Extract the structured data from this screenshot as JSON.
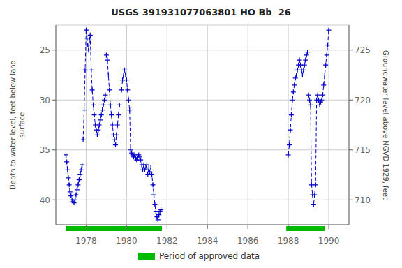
{
  "chart_data": {
    "type": "line",
    "title": "USGS 391931077063801 HO Bb  26",
    "y_label": "Depth to water level, feet below land\nsurface",
    "y2_label": "Groundwater level above NGVD 1929, feet",
    "xlim": [
      1976.5,
      1991.0
    ],
    "xticks": [
      1978,
      1980,
      1982,
      1984,
      1986,
      1988,
      1990
    ],
    "ylim": [
      42.5,
      22.5
    ],
    "yticks": [
      25,
      30,
      35,
      40
    ],
    "y2lim": [
      707.5,
      727.5
    ],
    "y2ticks": [
      710,
      715,
      720,
      725
    ],
    "grid": true,
    "legend": "bottom",
    "color": "#0000CC",
    "marker": "+",
    "line_style": "dashed",
    "series": [
      {
        "x": [
          1977.0,
          1977.04,
          1977.08,
          1977.12,
          1977.16,
          1977.2,
          1977.25,
          1977.3,
          1977.35,
          1977.4,
          1977.45,
          1977.5,
          1977.55,
          1977.6,
          1977.65,
          1977.7,
          1977.75,
          1977.8
        ],
        "values": [
          35.5,
          36.2,
          37.0,
          37.8,
          38.5,
          39.2,
          39.6,
          40.0,
          40.2,
          40.3,
          40.0,
          39.5,
          39.0,
          38.5,
          38.0,
          37.5,
          37.0,
          36.5
        ]
      },
      {
        "x": [
          1977.85,
          1977.9,
          1977.95,
          1978.0,
          1978.04,
          1978.08,
          1978.12,
          1978.16,
          1978.2,
          1978.25,
          1978.3,
          1978.35,
          1978.4,
          1978.45,
          1978.5,
          1978.55,
          1978.6,
          1978.65,
          1978.7,
          1978.75,
          1978.8,
          1978.85,
          1978.9,
          1978.95
        ],
        "values": [
          34.0,
          31.0,
          27.0,
          23.0,
          23.8,
          24.5,
          25.0,
          24.0,
          23.5,
          27.0,
          29.0,
          30.5,
          31.5,
          32.5,
          33.0,
          33.5,
          33.0,
          32.5,
          32.0,
          31.5,
          31.0,
          30.5,
          30.0,
          29.5
        ]
      },
      {
        "x": [
          1979.0,
          1979.05,
          1979.1,
          1979.15,
          1979.2,
          1979.25,
          1979.3,
          1979.35,
          1979.4,
          1979.45,
          1979.5,
          1979.55,
          1979.6,
          1979.65
        ],
        "values": [
          25.5,
          26.0,
          27.5,
          29.0,
          30.5,
          31.5,
          32.5,
          33.5,
          34.0,
          34.5,
          33.5,
          32.5,
          31.5,
          30.5
        ]
      },
      {
        "x": [
          1979.75,
          1979.8,
          1979.85,
          1979.9,
          1979.95,
          1980.0,
          1980.05,
          1980.1,
          1980.15,
          1980.2,
          1980.25,
          1980.3,
          1980.35,
          1980.4,
          1980.45,
          1980.5,
          1980.55,
          1980.6,
          1980.65,
          1980.7
        ],
        "values": [
          29.0,
          28.0,
          27.5,
          27.0,
          27.5,
          28.0,
          29.0,
          30.0,
          31.0,
          35.0,
          35.3,
          35.5,
          35.7,
          35.5,
          35.8,
          36.0,
          35.8,
          35.5,
          35.7,
          36.0
        ]
      },
      {
        "x": [
          1980.75,
          1980.8,
          1980.85,
          1980.9,
          1980.95,
          1981.0,
          1981.05,
          1981.1,
          1981.15,
          1981.2,
          1981.25,
          1981.3,
          1981.35,
          1981.4,
          1981.45,
          1981.5,
          1981.55,
          1981.6,
          1981.65,
          1981.7
        ],
        "values": [
          36.5,
          37.0,
          36.5,
          37.0,
          36.8,
          36.5,
          37.5,
          36.8,
          37.2,
          36.8,
          37.5,
          38.5,
          39.5,
          40.5,
          41.2,
          41.7,
          42.0,
          41.5,
          41.2,
          41.0
        ]
      },
      {
        "x": [
          1988.0,
          1988.05,
          1988.1,
          1988.15,
          1988.2,
          1988.25,
          1988.3,
          1988.35,
          1988.4,
          1988.45,
          1988.5,
          1988.55,
          1988.6,
          1988.65,
          1988.7,
          1988.75,
          1988.8,
          1988.85,
          1988.9,
          1988.95
        ],
        "values": [
          35.5,
          34.5,
          33.0,
          31.5,
          30.0,
          29.2,
          28.5,
          27.8,
          27.5,
          27.0,
          26.5,
          26.0,
          26.5,
          27.0,
          27.5,
          27.0,
          26.5,
          26.0,
          25.5,
          25.2
        ]
      },
      {
        "x": [
          1989.0,
          1989.05,
          1989.1,
          1989.15,
          1989.2,
          1989.25,
          1989.3,
          1989.35,
          1989.4,
          1989.45,
          1989.5,
          1989.55,
          1989.6,
          1989.65,
          1989.7,
          1989.75,
          1989.8,
          1989.85,
          1989.9,
          1989.95,
          1990.0
        ],
        "values": [
          29.5,
          30.0,
          30.5,
          38.5,
          39.5,
          40.5,
          39.5,
          38.5,
          30.0,
          29.5,
          30.0,
          30.5,
          30.2,
          30.0,
          29.5,
          28.5,
          27.5,
          26.5,
          25.5,
          24.5,
          23.0
        ]
      }
    ],
    "approved_periods": [
      [
        1977.0,
        1981.75
      ],
      [
        1987.9,
        1989.8
      ]
    ],
    "approved_color": "#00bb00",
    "approved_label": "Period of approved data"
  }
}
